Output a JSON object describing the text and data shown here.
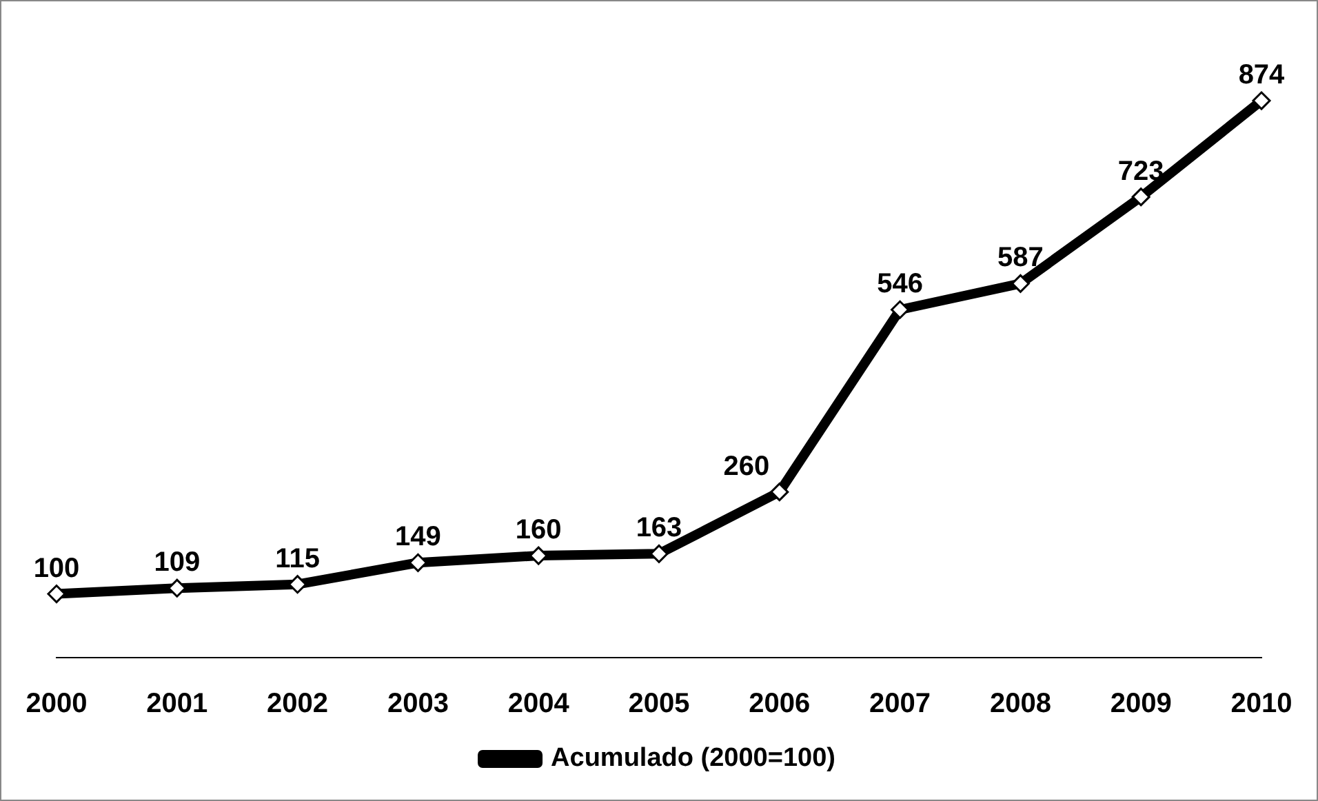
{
  "chart_data": {
    "type": "line",
    "categories": [
      "2000",
      "2001",
      "2002",
      "2003",
      "2004",
      "2005",
      "2006",
      "2007",
      "2008",
      "2009",
      "2010"
    ],
    "series": [
      {
        "name": "Acumulado (2000=100)",
        "color": "#000000",
        "values": [
          100,
          109,
          115,
          149,
          160,
          163,
          260,
          546,
          587,
          723,
          874
        ]
      }
    ],
    "data_labels": true,
    "marker": "diamond",
    "legend": "bottom",
    "grid": false,
    "tick_labels": "x"
  }
}
